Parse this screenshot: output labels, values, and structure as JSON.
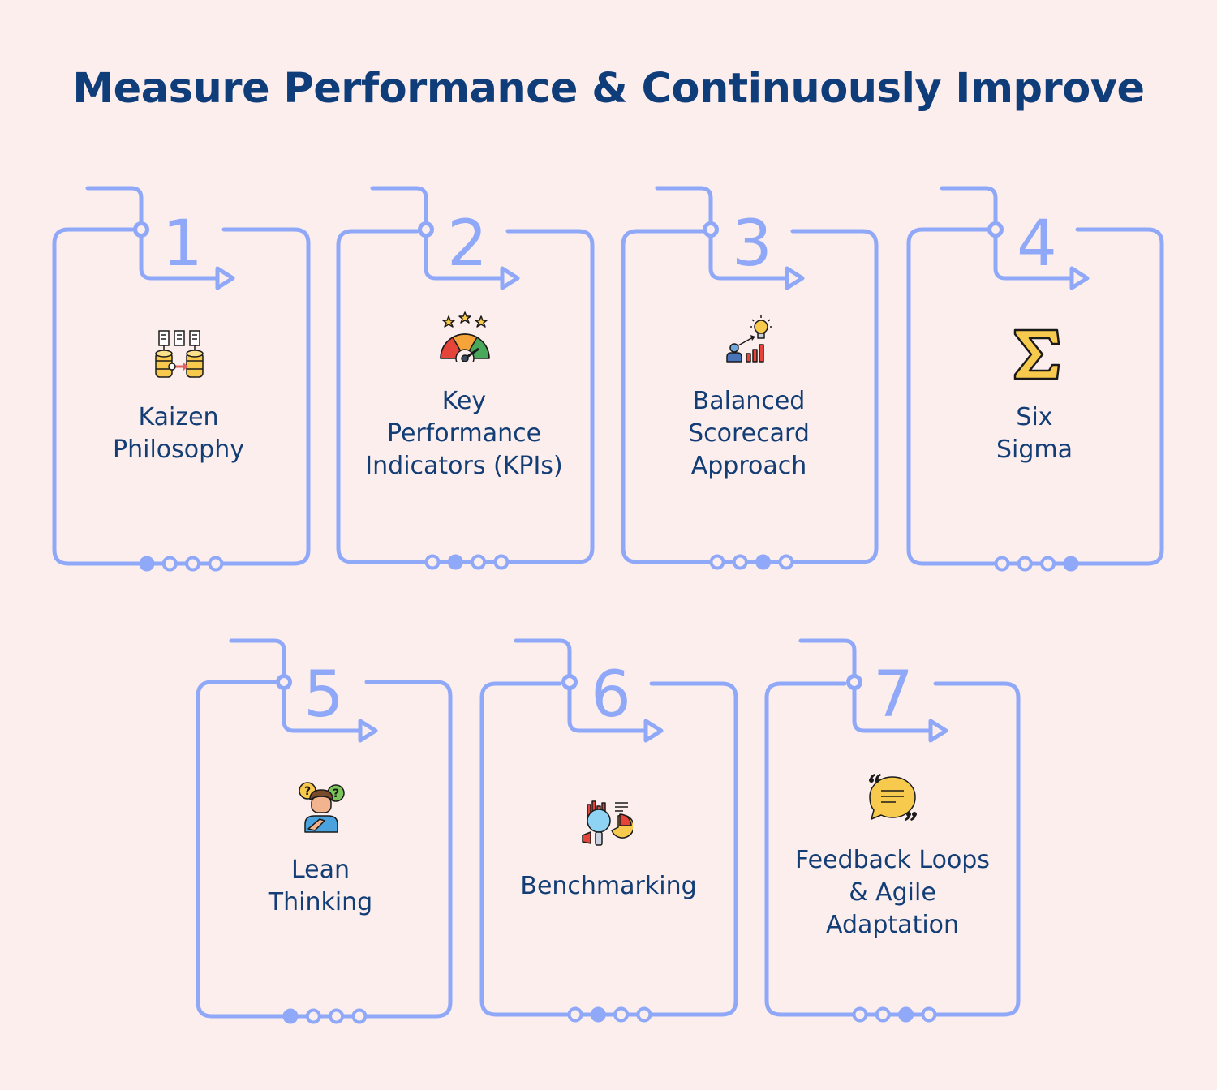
{
  "title": "Measure Performance & Continuously Improve",
  "colors": {
    "background": "#fdeeee",
    "title": "#0f3d7a",
    "frame": "#8fa8f8",
    "label": "#123d75"
  },
  "steps": [
    {
      "number": "1",
      "label": [
        "Kaizen",
        "Philosophy"
      ],
      "icon": "database-transfer-icon",
      "active_dot": 1
    },
    {
      "number": "2",
      "label": [
        "Key",
        "Performance",
        "Indicators (KPIs)"
      ],
      "icon": "gauge-stars-icon",
      "active_dot": 2
    },
    {
      "number": "3",
      "label": [
        "Balanced",
        "Scorecard",
        "Approach"
      ],
      "icon": "growth-idea-icon",
      "active_dot": 3
    },
    {
      "number": "4",
      "label": [
        "Six",
        "Sigma"
      ],
      "icon": "sigma-icon",
      "active_dot": 4
    },
    {
      "number": "5",
      "label": [
        "Lean",
        "Thinking"
      ],
      "icon": "thinking-person-icon",
      "active_dot": 1
    },
    {
      "number": "6",
      "label": [
        "Benchmarking"
      ],
      "icon": "magnifier-chart-icon",
      "active_dot": 2
    },
    {
      "number": "7",
      "label": [
        "Feedback Loops",
        "& Agile",
        "Adaptation"
      ],
      "icon": "feedback-chat-icon",
      "active_dot": 3
    }
  ]
}
